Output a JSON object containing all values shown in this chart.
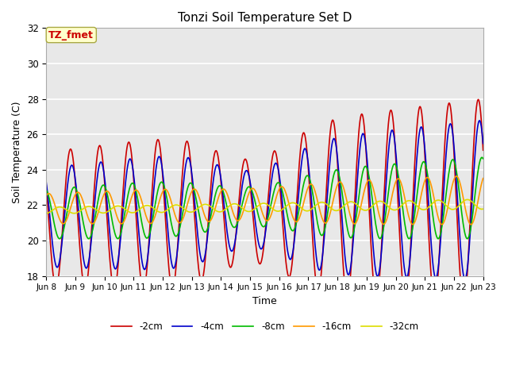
{
  "title": "Tonzi Soil Temperature Set D",
  "xlabel": "Time",
  "ylabel": "Soil Temperature (C)",
  "ylim": [
    18,
    32
  ],
  "xlim": [
    0,
    360
  ],
  "colors": {
    "-2cm": "#cc0000",
    "-4cm": "#0000cc",
    "-8cm": "#00bb00",
    "-16cm": "#ff9900",
    "-32cm": "#dddd00"
  },
  "xtick_labels": [
    "Jun 8",
    "Jun 9",
    "Jun 10",
    "Jun 11",
    "Jun 12",
    "Jun 13",
    "Jun 14",
    "Jun 15",
    "Jun 16",
    "Jun 17",
    "Jun 18",
    "Jun 19",
    "Jun 20",
    "Jun 21",
    "Jun 22",
    "Jun 23"
  ],
  "xtick_positions": [
    0,
    24,
    48,
    72,
    96,
    120,
    144,
    168,
    192,
    216,
    240,
    264,
    288,
    312,
    336,
    360
  ],
  "ytick_labels": [
    "18",
    "20",
    "22",
    "24",
    "26",
    "28",
    "30",
    "32"
  ],
  "ytick_positions": [
    18,
    20,
    22,
    24,
    26,
    28,
    30,
    32
  ],
  "annotation_text": "TZ_fmet",
  "annotation_color": "#cc0000",
  "annotation_bg": "#ffffcc",
  "annotation_border": "#aaaa44",
  "plot_bg": "#e8e8e8",
  "figsize": [
    6.4,
    4.8
  ],
  "dpi": 100
}
